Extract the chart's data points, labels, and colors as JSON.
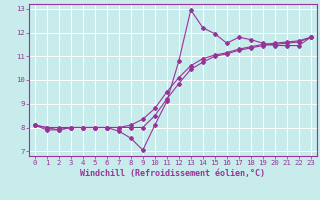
{
  "title": "",
  "xlabel": "Windchill (Refroidissement éolien,°C)",
  "bg_color": "#c8ecec",
  "line_color": "#993399",
  "grid_color": "#ffffff",
  "xlim": [
    -0.5,
    23.5
  ],
  "ylim": [
    6.8,
    13.2
  ],
  "yticks": [
    7,
    8,
    9,
    10,
    11,
    12,
    13
  ],
  "xticks": [
    0,
    1,
    2,
    3,
    4,
    5,
    6,
    7,
    8,
    9,
    10,
    11,
    12,
    13,
    14,
    15,
    16,
    17,
    18,
    19,
    20,
    21,
    22,
    23
  ],
  "series1_x": [
    0,
    1,
    2,
    3,
    4,
    5,
    6,
    7,
    8,
    9,
    10,
    11,
    12,
    13,
    14,
    15,
    16,
    17,
    18,
    19,
    20,
    21,
    22,
    23
  ],
  "series1_y": [
    8.1,
    7.9,
    7.9,
    8.0,
    8.0,
    8.0,
    8.0,
    7.85,
    7.55,
    7.05,
    8.1,
    9.1,
    10.8,
    12.95,
    12.2,
    11.95,
    11.55,
    11.8,
    11.7,
    11.55,
    11.45,
    11.45,
    11.45,
    11.8
  ],
  "series2_x": [
    0,
    1,
    2,
    3,
    4,
    5,
    6,
    7,
    8,
    9,
    10,
    11,
    12,
    13,
    14,
    15,
    16,
    17,
    18,
    19,
    20,
    21,
    22,
    23
  ],
  "series2_y": [
    8.1,
    8.0,
    7.9,
    8.0,
    8.0,
    8.0,
    8.0,
    8.0,
    8.0,
    8.0,
    8.5,
    9.2,
    9.85,
    10.45,
    10.75,
    11.0,
    11.1,
    11.25,
    11.35,
    11.45,
    11.5,
    11.55,
    11.6,
    11.8
  ],
  "series3_x": [
    0,
    1,
    2,
    3,
    4,
    5,
    6,
    7,
    8,
    9,
    10,
    11,
    12,
    13,
    14,
    15,
    16,
    17,
    18,
    19,
    20,
    21,
    22,
    23
  ],
  "series3_y": [
    8.1,
    8.0,
    8.0,
    8.0,
    8.0,
    8.0,
    8.0,
    8.0,
    8.1,
    8.35,
    8.8,
    9.5,
    10.1,
    10.6,
    10.9,
    11.05,
    11.15,
    11.3,
    11.4,
    11.5,
    11.55,
    11.6,
    11.65,
    11.8
  ],
  "marker": "D",
  "markersize": 2.0,
  "linewidth": 0.8,
  "tick_fontsize": 5.2,
  "label_fontsize": 6.0
}
